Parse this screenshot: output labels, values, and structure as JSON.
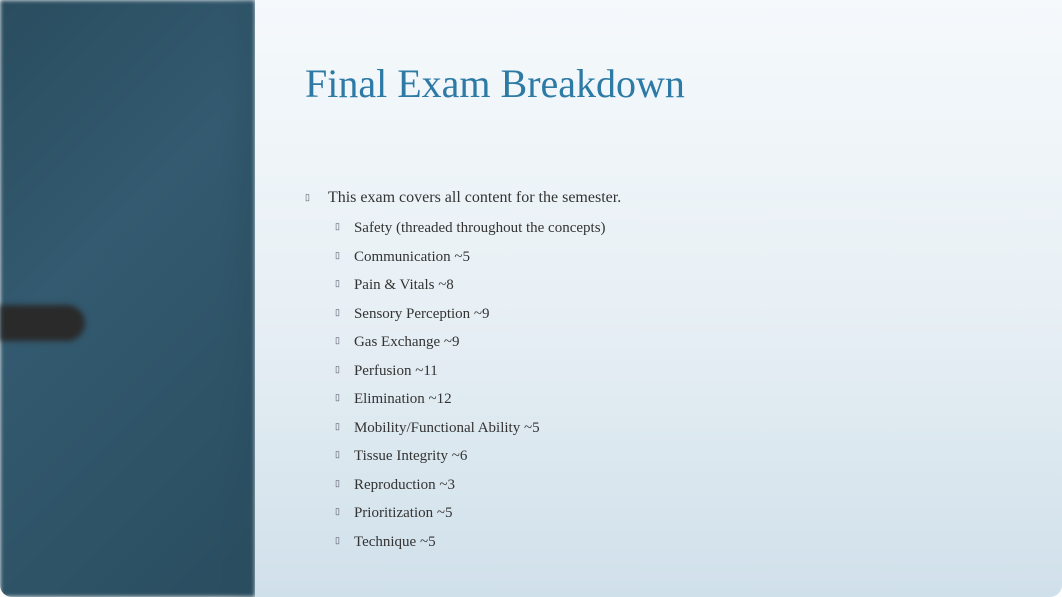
{
  "slide": {
    "title": "Final Exam Breakdown",
    "title_color": "#2d7aa5",
    "title_fontsize": 40,
    "background_gradient": [
      "#f5f9fc",
      "#e8f0f5",
      "#d0e0ea"
    ],
    "sidebar_color": "#2a4d5f",
    "main_item": "This exam covers all content for the semester.",
    "sub_items": [
      "Safety (threaded throughout the concepts)",
      "Communication ~5",
      "Pain & Vitals ~8",
      "Sensory Perception ~9",
      "Gas Exchange ~9",
      "Perfusion ~11",
      "Elimination ~12",
      "Mobility/Functional Ability ~5",
      "Tissue Integrity ~6",
      "Reproduction ~3",
      "Prioritization ~5",
      "Technique ~5"
    ],
    "body_fontsize": 15,
    "body_color": "#333333",
    "bullet_glyph": "▯"
  }
}
